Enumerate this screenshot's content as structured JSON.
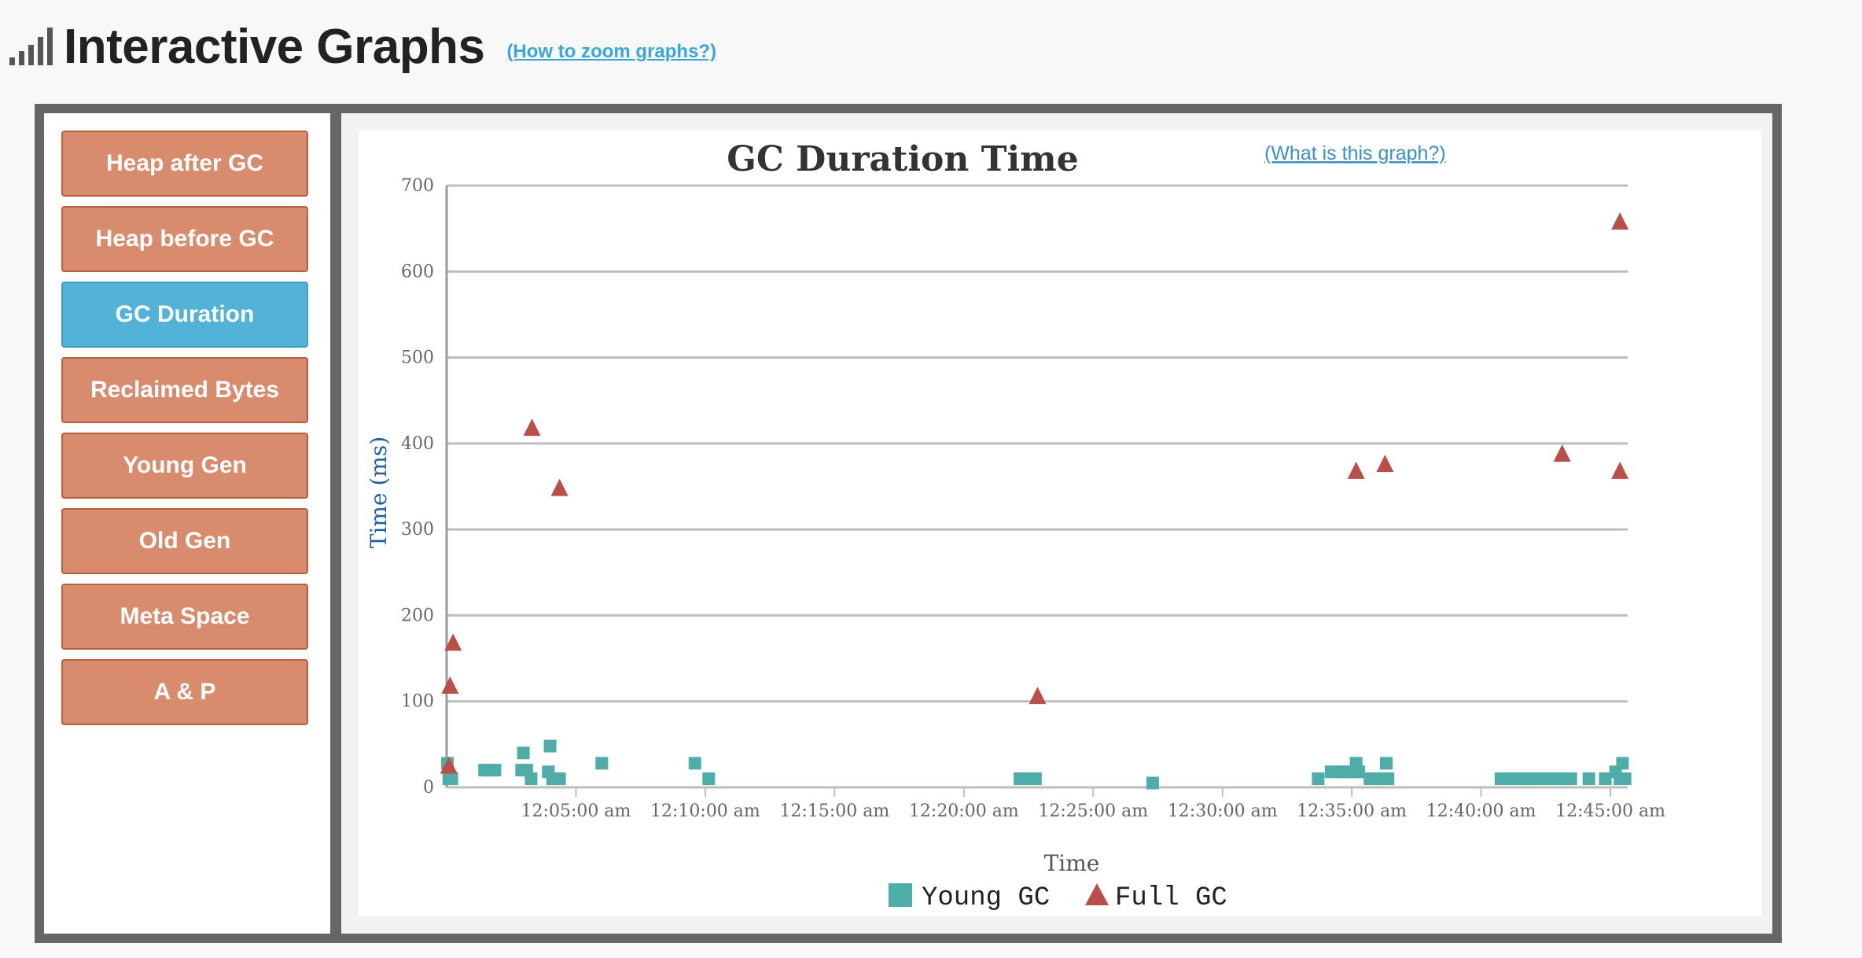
{
  "page": {
    "title": "Interactive Graphs",
    "zoom_help": "(How to zoom graphs?)"
  },
  "nav": {
    "items": [
      {
        "label": "Heap after GC"
      },
      {
        "label": "Heap before GC"
      },
      {
        "label": "GC Duration"
      },
      {
        "label": "Reclaimed Bytes"
      },
      {
        "label": "Young Gen"
      },
      {
        "label": "Old Gen"
      },
      {
        "label": "Meta Space"
      },
      {
        "label": "A & P"
      }
    ],
    "active_index": 2
  },
  "colors": {
    "nav_button": "#d98b6e",
    "nav_active": "#52b2d8",
    "young_gc": "#4fada8",
    "full_gc": "#b94f48"
  },
  "chart_data": {
    "type": "scatter",
    "title": "GC Duration Time",
    "help_link": "(What is this graph?)",
    "xlabel": "Time",
    "ylabel": "Time (ms)",
    "ylim": [
      0,
      700
    ],
    "yticks": [
      0,
      100,
      200,
      300,
      400,
      500,
      600,
      700
    ],
    "xlim_seconds": [
      0,
      2740
    ],
    "xticks": [
      {
        "label": "12:05:00 am",
        "t": 300
      },
      {
        "label": "12:10:00 am",
        "t": 600
      },
      {
        "label": "12:15:00 am",
        "t": 900
      },
      {
        "label": "12:20:00 am",
        "t": 1200
      },
      {
        "label": "12:25:00 am",
        "t": 1500
      },
      {
        "label": "12:30:00 am",
        "t": 1800
      },
      {
        "label": "12:35:00 am",
        "t": 2100
      },
      {
        "label": "12:40:00 am",
        "t": 2400
      },
      {
        "label": "12:45:00 am",
        "t": 2700
      }
    ],
    "grid": true,
    "legend_position": "bottom-center",
    "series": [
      {
        "name": "Young GC",
        "marker": "square",
        "points": [
          [
            2,
            28
          ],
          [
            5,
            10
          ],
          [
            12,
            10
          ],
          [
            88,
            20
          ],
          [
            100,
            20
          ],
          [
            112,
            20
          ],
          [
            174,
            20
          ],
          [
            186,
            20
          ],
          [
            178,
            40
          ],
          [
            196,
            10
          ],
          [
            240,
            48
          ],
          [
            236,
            18
          ],
          [
            246,
            10
          ],
          [
            262,
            10
          ],
          [
            360,
            28
          ],
          [
            576,
            28
          ],
          [
            608,
            10
          ],
          [
            1330,
            10
          ],
          [
            1342,
            10
          ],
          [
            1354,
            10
          ],
          [
            1366,
            10
          ],
          [
            1638,
            5
          ],
          [
            2022,
            10
          ],
          [
            2052,
            18
          ],
          [
            2068,
            18
          ],
          [
            2084,
            18
          ],
          [
            2100,
            18
          ],
          [
            2110,
            28
          ],
          [
            2116,
            18
          ],
          [
            2142,
            10
          ],
          [
            2156,
            10
          ],
          [
            2166,
            10
          ],
          [
            2180,
            28
          ],
          [
            2184,
            10
          ],
          [
            2446,
            10
          ],
          [
            2462,
            10
          ],
          [
            2480,
            10
          ],
          [
            2498,
            10
          ],
          [
            2514,
            10
          ],
          [
            2530,
            10
          ],
          [
            2546,
            10
          ],
          [
            2562,
            10
          ],
          [
            2578,
            10
          ],
          [
            2594,
            10
          ],
          [
            2608,
            10
          ],
          [
            2650,
            10
          ],
          [
            2688,
            10
          ],
          [
            2712,
            18
          ],
          [
            2722,
            10
          ],
          [
            2728,
            28
          ],
          [
            2734,
            10
          ]
        ]
      },
      {
        "name": "Full GC",
        "marker": "triangle",
        "points": [
          [
            5,
            25
          ],
          [
            8,
            118
          ],
          [
            15,
            168
          ],
          [
            198,
            418
          ],
          [
            262,
            348
          ],
          [
            1371,
            106
          ],
          [
            2110,
            368
          ],
          [
            2177,
            376
          ],
          [
            2588,
            388
          ],
          [
            2722,
            368
          ],
          [
            2722,
            658
          ]
        ]
      }
    ]
  }
}
